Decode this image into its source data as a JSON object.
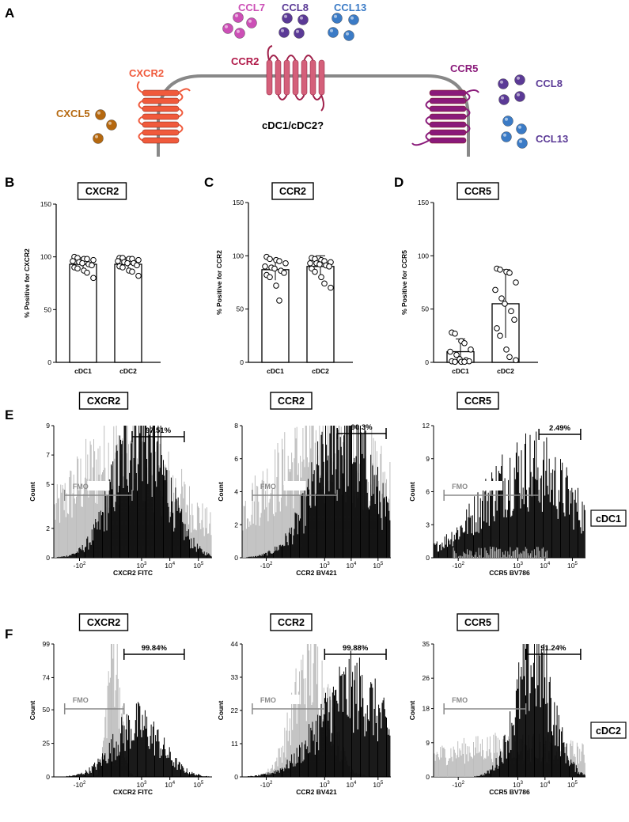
{
  "panel_labels": {
    "A": "A",
    "B": "B",
    "C": "C",
    "D": "D",
    "E": "E",
    "F": "F"
  },
  "diagram": {
    "cell_label": "cDC1/cDC2?",
    "receptors": {
      "cxcr2": "CXCR2",
      "ccr2": "CCR2",
      "ccr5": "CCR5"
    },
    "ligands": {
      "ccl7": "CCL7",
      "ccl8": "CCL8",
      "ccl13": "CCL13",
      "cxcl5": "CXCL5",
      "ccl8_right": "CCL8",
      "ccl13_right": "CCL13"
    },
    "colors": {
      "cxcr2": "#f05a3c",
      "ccr2": "#d4607a",
      "ccr5": "#8a1a7a",
      "ccl7": "#cc4fb6",
      "ccl8": "#5b3a96",
      "ccl13": "#3b7bc6",
      "cxcl5": "#b5680f",
      "membrane": "#8a8a8a"
    }
  },
  "chart_data": [
    {
      "type": "bar",
      "panel": "B",
      "title": "CXCR2",
      "ylabel": "% Positive for CXCR2",
      "xlabel": "",
      "categories": [
        "cDC1",
        "cDC2"
      ],
      "values": [
        93,
        93
      ],
      "errors": [
        6,
        6
      ],
      "ylim": [
        0,
        150
      ],
      "yticks": [
        "0",
        "50",
        "100",
        "150"
      ],
      "points": [
        [
          100,
          99,
          98,
          98,
          97,
          96,
          95,
          94,
          93,
          92,
          90,
          89,
          87,
          85,
          80
        ],
        [
          99,
          99,
          98,
          98,
          97,
          96,
          95,
          94,
          94,
          92,
          91,
          90,
          87,
          86,
          82
        ]
      ]
    },
    {
      "type": "bar",
      "panel": "C",
      "title": "CCR2",
      "ylabel": "% Positive for CCR2",
      "xlabel": "",
      "categories": [
        "cDC1",
        "cDC2"
      ],
      "values": [
        87,
        90
      ],
      "errors": [
        10,
        10
      ],
      "ylim": [
        0,
        150
      ],
      "yticks": [
        "0",
        "50",
        "100",
        "150"
      ],
      "points": [
        [
          99,
          97,
          96,
          95,
          93,
          90,
          89,
          88,
          86,
          84,
          82,
          80,
          72,
          58
        ],
        [
          98,
          97,
          96,
          95,
          94,
          93,
          93,
          92,
          91,
          90,
          88,
          85,
          80,
          74,
          70
        ]
      ]
    },
    {
      "type": "bar",
      "panel": "D",
      "title": "CCR5",
      "ylabel": "% Positive for CCR5",
      "xlabel": "",
      "categories": [
        "cDC1",
        "cDC2"
      ],
      "values": [
        10,
        55
      ],
      "errors": [
        12,
        32
      ],
      "ylim": [
        0,
        150
      ],
      "yticks": [
        "0",
        "50",
        "100",
        "150"
      ],
      "points": [
        [
          28,
          27,
          20,
          18,
          12,
          10,
          7,
          3,
          2,
          1,
          1,
          0.5,
          0.5,
          0.5
        ],
        [
          88,
          87,
          85,
          84,
          75,
          68,
          60,
          55,
          48,
          40,
          32,
          25,
          12,
          5,
          2
        ]
      ]
    },
    {
      "type": "histogram",
      "panel": "E",
      "title": "CXCR2",
      "xlabel": "CXCR2 FITC",
      "ylabel": "Count",
      "ylim": [
        0,
        9
      ],
      "yticks": [
        "0",
        "2",
        "5",
        "7",
        "9"
      ],
      "gate_label": "97.51%",
      "fmo_label": "FMO",
      "xlim": [
        -1000,
        300000
      ],
      "gate_range": [
        450,
        32000
      ],
      "fmo_range": [
        -400,
        450
      ],
      "fmo_peak": 230,
      "pos_peak": 900,
      "fmo_height": 7,
      "pos_height": 8.5,
      "fmo_width": 0.35,
      "pos_width": 0.16
    },
    {
      "type": "histogram",
      "panel": "E",
      "title": "CCR2",
      "xlabel": "CCR2 BV421",
      "ylabel": "Count",
      "ylim": [
        0,
        8
      ],
      "yticks": [
        "0",
        "2",
        "4",
        "6",
        "8"
      ],
      "gate_label": "90.3%",
      "fmo_label": "FMO",
      "xlim": [
        -1000,
        300000
      ],
      "gate_range": [
        3000,
        200000
      ],
      "fmo_range": [
        -400,
        3000
      ],
      "fmo_peak": 1500,
      "pos_peak": 5500,
      "fmo_height": 6.5,
      "pos_height": 7.2,
      "fmo_width": 0.45,
      "pos_width": 0.2
    },
    {
      "type": "histogram",
      "panel": "E",
      "title": "CCR5",
      "xlabel": "CCR5 BV786",
      "ylabel": "Count",
      "ylim": [
        0,
        12
      ],
      "yticks": [
        "0",
        "3",
        "6",
        "9",
        "12"
      ],
      "gate_label": "2.49%",
      "fmo_label": "FMO",
      "xlim": [
        -1000,
        300000
      ],
      "gate_range": [
        6000,
        200000
      ],
      "fmo_range": [
        -400,
        6000
      ],
      "fmo_peak": 0,
      "pos_peak": 2500,
      "fmo_height": 0,
      "pos_height": 8,
      "fmo_width": 0.4,
      "pos_width": 0.3
    },
    {
      "type": "histogram",
      "panel": "F",
      "title": "CXCR2",
      "xlabel": "CXCR2 FITC",
      "ylabel": "Count",
      "ylim": [
        0,
        99
      ],
      "yticks": [
        "0",
        "25",
        "50",
        "74",
        "99"
      ],
      "gate_label": "99.84%",
      "fmo_label": "FMO",
      "xlim": [
        -1000,
        300000
      ],
      "gate_range": [
        220,
        32000
      ],
      "fmo_range": [
        -400,
        220
      ],
      "fmo_peak": 80,
      "pos_peak": 700,
      "fmo_height": 95,
      "pos_height": 38,
      "fmo_width": 0.04,
      "pos_width": 0.15
    },
    {
      "type": "histogram",
      "panel": "F",
      "title": "CCR2",
      "xlabel": "CCR2 BV421",
      "ylabel": "Count",
      "ylim": [
        0,
        44
      ],
      "yticks": [
        "0",
        "11",
        "22",
        "33",
        "44"
      ],
      "gate_label": "99.88%",
      "fmo_label": "FMO",
      "xlim": [
        -1000,
        300000
      ],
      "gate_range": [
        1000,
        200000
      ],
      "fmo_range": [
        -400,
        1000
      ],
      "fmo_peak": 300,
      "pos_peak": 11000,
      "fmo_height": 36,
      "pos_height": 28,
      "fmo_width": 0.12,
      "pos_width": 0.22
    },
    {
      "type": "histogram",
      "panel": "F",
      "title": "CCR5",
      "xlabel": "CCR5 BV786",
      "ylabel": "Count",
      "ylim": [
        0,
        35
      ],
      "yticks": [
        "0",
        "9",
        "18",
        "26",
        "35"
      ],
      "gate_label": "91.24%",
      "fmo_label": "FMO",
      "xlim": [
        -1000,
        300000
      ],
      "gate_range": [
        2000,
        200000
      ],
      "fmo_range": [
        -400,
        2000
      ],
      "fmo_peak": 700,
      "pos_peak": 4000,
      "fmo_height": 8,
      "pos_height": 30,
      "fmo_width": 0.6,
      "pos_width": 0.12
    }
  ],
  "side_labels": {
    "e": "cDC1",
    "f": "cDC2"
  },
  "axis_ticks": {
    "neg2": "-10",
    "two": "2",
    "ten": "10",
    "three": "3",
    "four": "4",
    "five": "5"
  }
}
